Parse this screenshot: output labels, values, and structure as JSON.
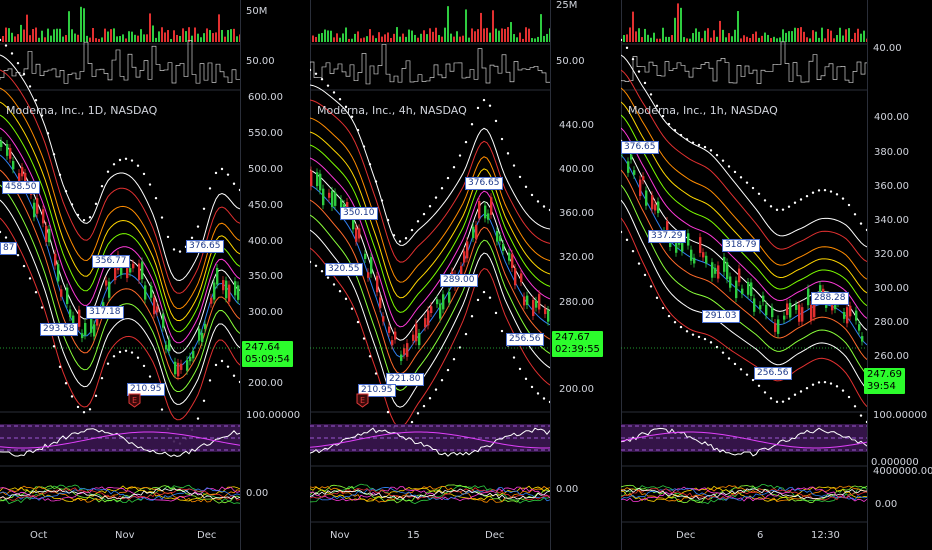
{
  "panels": [
    {
      "title": "Moderna, Inc., 1D, NASDAQ",
      "axis_top": [
        "50M",
        "50.00"
      ],
      "price_ticks": [
        "600.00",
        "550.00",
        "500.00",
        "450.00",
        "400.00",
        "350.00",
        "300.00",
        "250.00",
        "200.00"
      ],
      "price_box": {
        "price": "247.64",
        "countdown": "05:09:54"
      },
      "rsi_tick": "100.00000",
      "macd_tick": "0.00",
      "x_ticks": [
        "Oct",
        "Nov",
        "Dec"
      ],
      "labels": [
        "458.50",
        "87",
        "356.77",
        "317.18",
        "293.58",
        "376.65",
        "210.95"
      ],
      "earnings": "E"
    },
    {
      "title": "Moderna, Inc., 4h, NASDAQ",
      "axis_top": [
        "25M",
        "50.00"
      ],
      "price_ticks": [
        "440.00",
        "400.00",
        "360.00",
        "320.00",
        "280.00",
        "240.00",
        "200.00"
      ],
      "price_box": {
        "price": "247.67",
        "countdown": "02:39:55"
      },
      "rsi_tick": "",
      "macd_tick": "0.00",
      "x_ticks": [
        "Nov",
        "15",
        "Dec"
      ],
      "labels": [
        "350.10",
        "320.55",
        "376.65",
        "289.00",
        "256.56",
        "221.80",
        "210.95"
      ],
      "earnings": "E"
    },
    {
      "title": "Moderna, Inc., 1h, NASDAQ",
      "axis_top": [
        "",
        "40.00"
      ],
      "price_ticks": [
        "400.00",
        "380.00",
        "360.00",
        "340.00",
        "320.00",
        "300.00",
        "280.00",
        "260.00"
      ],
      "price_box": {
        "price": "247.69",
        "countdown": "39:54"
      },
      "rsi_tick": "100.00000",
      "rsi_tick2": "0.000000",
      "macd_tick": "4000000.00",
      "macd_tick2": "0.00",
      "x_ticks": [
        "Dec",
        "6",
        "12:30"
      ],
      "labels": [
        "376.65",
        "337.29",
        "318.79",
        "291.03",
        "288.28",
        "256.56"
      ],
      "earnings": ""
    }
  ]
}
